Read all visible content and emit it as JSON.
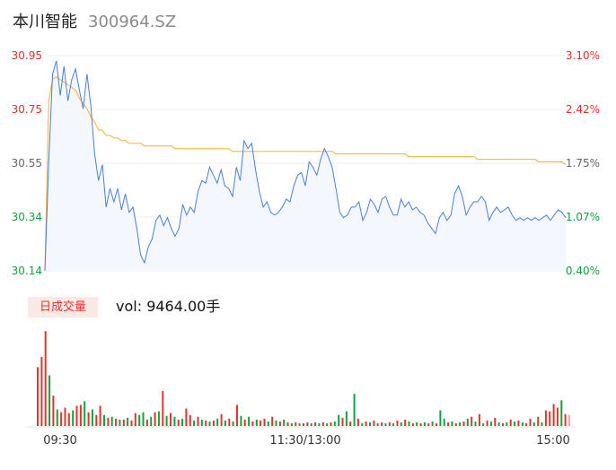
{
  "header": {
    "name": "本川智能",
    "code": "300964.SZ"
  },
  "volume_panel": {
    "tag": "日成交量",
    "vol_prefix": "vol:",
    "vol_value": "9464.00手"
  },
  "colors": {
    "price_line": "#4a7fdc",
    "avg_line": "#f2b233",
    "area_fill": "#f4f7fe",
    "up": "#e5322d",
    "down": "#10a23e",
    "neutral_label": "#666666"
  },
  "chart_data": [
    {
      "type": "line",
      "title": "",
      "series": [
        {
          "name": "",
          "values": [
            30.14,
            30.55,
            30.88,
            30.93,
            30.8,
            30.91,
            30.78,
            30.86,
            30.9,
            30.82,
            30.75,
            30.88,
            30.76,
            30.58,
            30.48,
            30.54,
            30.38,
            30.45,
            30.4,
            30.45,
            30.37,
            30.43,
            30.36,
            30.38,
            30.3,
            30.2,
            30.17,
            30.23,
            30.26,
            30.33,
            30.35,
            30.31,
            30.34,
            30.3,
            30.27,
            30.3,
            30.39,
            30.35,
            30.38,
            30.36,
            30.44,
            30.48,
            30.47,
            30.53,
            30.5,
            30.47,
            30.52,
            30.46,
            30.45,
            30.42,
            30.53,
            30.48,
            30.63,
            30.6,
            30.62,
            30.52,
            30.44,
            30.38,
            30.4,
            30.36,
            30.35,
            30.36,
            30.38,
            30.41,
            30.4,
            30.46,
            30.5,
            30.51,
            30.46,
            30.55,
            30.53,
            30.5,
            30.56,
            30.6,
            30.57,
            30.53,
            30.45,
            30.36,
            30.34,
            30.35,
            30.38,
            30.38,
            30.4,
            30.33,
            30.36,
            30.41,
            30.39,
            30.36,
            30.41,
            30.42,
            30.38,
            30.35,
            30.35,
            30.41,
            30.38,
            30.4,
            30.37,
            30.38,
            30.36,
            30.35,
            30.32,
            30.3,
            30.28,
            30.34,
            30.36,
            30.33,
            30.35,
            30.43,
            30.46,
            30.42,
            30.35,
            30.38,
            30.4,
            30.4,
            30.42,
            30.4,
            30.33,
            30.36,
            30.38,
            30.36,
            30.37,
            30.38,
            30.35,
            30.33,
            30.34,
            30.33,
            30.34,
            30.33,
            30.34,
            30.33,
            30.34,
            30.35,
            30.33,
            30.35,
            30.37,
            30.36,
            30.34
          ]
        },
        {
          "name": "",
          "values": [
            30.14,
            30.78,
            30.86,
            30.87,
            30.86,
            30.85,
            30.84,
            30.83,
            30.82,
            30.79,
            30.77,
            30.75,
            30.72,
            30.7,
            30.67,
            30.67,
            30.65,
            30.65,
            30.64,
            30.64,
            30.63,
            30.63,
            30.62,
            30.62,
            30.62,
            30.62,
            30.61,
            30.61,
            30.61,
            30.61,
            30.61,
            30.61,
            30.61,
            30.61,
            30.6,
            30.6,
            30.6,
            30.6,
            30.6,
            30.6,
            30.6,
            30.6,
            30.6,
            30.6,
            30.6,
            30.6,
            30.6,
            30.6,
            30.6,
            30.59,
            30.59,
            30.59,
            30.59,
            30.59,
            30.59,
            30.59,
            30.59,
            30.59,
            30.59,
            30.59,
            30.59,
            30.59,
            30.59,
            30.59,
            30.59,
            30.59,
            30.59,
            30.59,
            30.59,
            30.59,
            30.59,
            30.59,
            30.59,
            30.59,
            30.59,
            30.59,
            30.58,
            30.58,
            30.58,
            30.58,
            30.58,
            30.58,
            30.58,
            30.58,
            30.58,
            30.58,
            30.58,
            30.58,
            30.58,
            30.58,
            30.58,
            30.58,
            30.58,
            30.58,
            30.58,
            30.57,
            30.57,
            30.57,
            30.57,
            30.57,
            30.57,
            30.57,
            30.57,
            30.57,
            30.57,
            30.57,
            30.57,
            30.57,
            30.57,
            30.57,
            30.57,
            30.57,
            30.57,
            30.56,
            30.56,
            30.56,
            30.56,
            30.56,
            30.56,
            30.56,
            30.56,
            30.56,
            30.56,
            30.56,
            30.56,
            30.56,
            30.56,
            30.56,
            30.56,
            30.55,
            30.55,
            30.55,
            30.55,
            30.55,
            30.55,
            30.55,
            30.54
          ]
        }
      ],
      "ylim": [
        30.14,
        30.95
      ],
      "y_ticks_left": [
        "30.95",
        "30.75",
        "30.55",
        "30.34",
        "30.14"
      ],
      "y_ticks_right": [
        "3.10%",
        "2.42%",
        "1.75%",
        "1.07%",
        "0.40%"
      ]
    },
    {
      "type": "bar",
      "title": "",
      "ylim": [
        0,
        112
      ],
      "x_ticks": [
        "09:30",
        "11:30/13:00",
        "15:00"
      ],
      "bars": [
        {
          "v": 64,
          "d": "u"
        },
        {
          "v": 75,
          "d": "u"
        },
        {
          "v": 103,
          "d": "u"
        },
        {
          "v": 55,
          "d": "d"
        },
        {
          "v": 33,
          "d": "u"
        },
        {
          "v": 18,
          "d": "d"
        },
        {
          "v": 15,
          "d": "u"
        },
        {
          "v": 20,
          "d": "u"
        },
        {
          "v": 14,
          "d": "u"
        },
        {
          "v": 17,
          "d": "d"
        },
        {
          "v": 22,
          "d": "u"
        },
        {
          "v": 23,
          "d": "u"
        },
        {
          "v": 27,
          "d": "d"
        },
        {
          "v": 15,
          "d": "u"
        },
        {
          "v": 18,
          "d": "d"
        },
        {
          "v": 12,
          "d": "u"
        },
        {
          "v": 22,
          "d": "u"
        },
        {
          "v": 12,
          "d": "d"
        },
        {
          "v": 9,
          "d": "u"
        },
        {
          "v": 10,
          "d": "d"
        },
        {
          "v": 8,
          "d": "u"
        },
        {
          "v": 7,
          "d": "d"
        },
        {
          "v": 7,
          "d": "u"
        },
        {
          "v": 9,
          "d": "d"
        },
        {
          "v": 6,
          "d": "u"
        },
        {
          "v": 14,
          "d": "u"
        },
        {
          "v": 12,
          "d": "d"
        },
        {
          "v": 15,
          "d": "d"
        },
        {
          "v": 7,
          "d": "u"
        },
        {
          "v": 10,
          "d": "d"
        },
        {
          "v": 15,
          "d": "u"
        },
        {
          "v": 16,
          "d": "d"
        },
        {
          "v": 38,
          "d": "u"
        },
        {
          "v": 11,
          "d": "d"
        },
        {
          "v": 14,
          "d": "u"
        },
        {
          "v": 10,
          "d": "d"
        },
        {
          "v": 7,
          "d": "u"
        },
        {
          "v": 8,
          "d": "d"
        },
        {
          "v": 19,
          "d": "u"
        },
        {
          "v": 12,
          "d": "u"
        },
        {
          "v": 6,
          "d": "d"
        },
        {
          "v": 10,
          "d": "u"
        },
        {
          "v": 7,
          "d": "d"
        },
        {
          "v": 6,
          "d": "u"
        },
        {
          "v": 5,
          "d": "d"
        },
        {
          "v": 6,
          "d": "u"
        },
        {
          "v": 8,
          "d": "d"
        },
        {
          "v": 13,
          "d": "u"
        },
        {
          "v": 6,
          "d": "d"
        },
        {
          "v": 8,
          "d": "u"
        },
        {
          "v": 5,
          "d": "d"
        },
        {
          "v": 23,
          "d": "u"
        },
        {
          "v": 11,
          "d": "d"
        },
        {
          "v": 7,
          "d": "u"
        },
        {
          "v": 10,
          "d": "d"
        },
        {
          "v": 5,
          "d": "u"
        },
        {
          "v": 7,
          "d": "d"
        },
        {
          "v": 6,
          "d": "u"
        },
        {
          "v": 8,
          "d": "u"
        },
        {
          "v": 5,
          "d": "d"
        },
        {
          "v": 10,
          "d": "u"
        },
        {
          "v": 6,
          "d": "d"
        },
        {
          "v": 5,
          "d": "u"
        },
        {
          "v": 7,
          "d": "d"
        },
        {
          "v": 4,
          "d": "u"
        },
        {
          "v": 3,
          "d": "d"
        },
        {
          "v": 4,
          "d": "u"
        },
        {
          "v": 3,
          "d": "d"
        },
        {
          "v": 3,
          "d": "u"
        },
        {
          "v": 4,
          "d": "u"
        },
        {
          "v": 3,
          "d": "d"
        },
        {
          "v": 4,
          "d": "u"
        },
        {
          "v": 3,
          "d": "d"
        },
        {
          "v": 4,
          "d": "u"
        },
        {
          "v": 3,
          "d": "d"
        },
        {
          "v": 4,
          "d": "u"
        },
        {
          "v": 5,
          "d": "d"
        },
        {
          "v": 12,
          "d": "d"
        },
        {
          "v": 9,
          "d": "u"
        },
        {
          "v": 16,
          "d": "d"
        },
        {
          "v": 5,
          "d": "u"
        },
        {
          "v": 35,
          "d": "d"
        },
        {
          "v": 8,
          "d": "u"
        },
        {
          "v": 3,
          "d": "d"
        },
        {
          "v": 5,
          "d": "u"
        },
        {
          "v": 4,
          "d": "d"
        },
        {
          "v": 6,
          "d": "u"
        },
        {
          "v": 3,
          "d": "d"
        },
        {
          "v": 4,
          "d": "u"
        },
        {
          "v": 3,
          "d": "d"
        },
        {
          "v": 4,
          "d": "u"
        },
        {
          "v": 3,
          "d": "d"
        },
        {
          "v": 6,
          "d": "u"
        },
        {
          "v": 4,
          "d": "d"
        },
        {
          "v": 7,
          "d": "u"
        },
        {
          "v": 5,
          "d": "d"
        },
        {
          "v": 3,
          "d": "u"
        },
        {
          "v": 4,
          "d": "d"
        },
        {
          "v": 3,
          "d": "u"
        },
        {
          "v": 4,
          "d": "d"
        },
        {
          "v": 3,
          "d": "u"
        },
        {
          "v": 5,
          "d": "d"
        },
        {
          "v": 3,
          "d": "u"
        },
        {
          "v": 17,
          "d": "d"
        },
        {
          "v": 8,
          "d": "d"
        },
        {
          "v": 4,
          "d": "u"
        },
        {
          "v": 5,
          "d": "d"
        },
        {
          "v": 3,
          "d": "u"
        },
        {
          "v": 4,
          "d": "d"
        },
        {
          "v": 5,
          "d": "u"
        },
        {
          "v": 8,
          "d": "d"
        },
        {
          "v": 10,
          "d": "u"
        },
        {
          "v": 5,
          "d": "d"
        },
        {
          "v": 13,
          "d": "u"
        },
        {
          "v": 3,
          "d": "d"
        },
        {
          "v": 6,
          "d": "u"
        },
        {
          "v": 5,
          "d": "d"
        },
        {
          "v": 9,
          "d": "u"
        },
        {
          "v": 4,
          "d": "d"
        },
        {
          "v": 3,
          "d": "u"
        },
        {
          "v": 4,
          "d": "d"
        },
        {
          "v": 7,
          "d": "u"
        },
        {
          "v": 5,
          "d": "d"
        },
        {
          "v": 6,
          "d": "u"
        },
        {
          "v": 4,
          "d": "d"
        },
        {
          "v": 3,
          "d": "u"
        },
        {
          "v": 8,
          "d": "u"
        },
        {
          "v": 4,
          "d": "d"
        },
        {
          "v": 10,
          "d": "u"
        },
        {
          "v": 4,
          "d": "d"
        },
        {
          "v": 17,
          "d": "u"
        },
        {
          "v": 16,
          "d": "u"
        },
        {
          "v": 24,
          "d": "u"
        },
        {
          "v": 20,
          "d": "u"
        },
        {
          "v": 28,
          "d": "d"
        },
        {
          "v": 13,
          "d": "u"
        },
        {
          "v": 12,
          "d": "n"
        }
      ]
    }
  ]
}
